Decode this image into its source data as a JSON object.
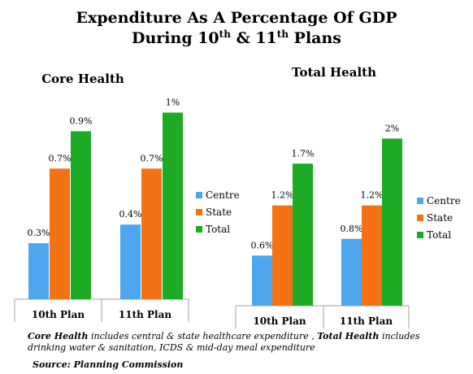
{
  "title": {
    "line1": "Expenditure As A Percentage Of GDP",
    "line2_pre": "During 10",
    "sup1": "th",
    "line2_mid": " & 11",
    "sup2": "th",
    "line2_post": " Plans"
  },
  "colors": {
    "Centre": "#4da6ee",
    "State": "#f47216",
    "Total": "#1daa25",
    "axis": "#a0a0a0",
    "text": "#000000"
  },
  "chart_data": [
    {
      "type": "bar",
      "title": "Core Health",
      "categories": [
        "10th Plan",
        "11th Plan"
      ],
      "series": [
        {
          "name": "Centre",
          "values": [
            0.3,
            0.4
          ],
          "labels": [
            "0.3%",
            "0.4%"
          ]
        },
        {
          "name": "State",
          "values": [
            0.7,
            0.7
          ],
          "labels": [
            "0.7%",
            "0.7%"
          ]
        },
        {
          "name": "Total",
          "values": [
            0.9,
            1.0
          ],
          "labels": [
            "0.9%",
            "1%"
          ]
        }
      ],
      "legend": "right",
      "grid": false,
      "ylim": [
        0,
        1.05
      ]
    },
    {
      "type": "bar",
      "title": "Total Health",
      "categories": [
        "10th Plan",
        "11th Plan"
      ],
      "series": [
        {
          "name": "Centre",
          "values": [
            0.6,
            0.8
          ],
          "labels": [
            "0.6%",
            "0.8%"
          ]
        },
        {
          "name": "State",
          "values": [
            1.2,
            1.2
          ],
          "labels": [
            "1.2%",
            "1.2%"
          ]
        },
        {
          "name": "Total",
          "values": [
            1.7,
            2.0
          ],
          "labels": [
            "1.7%",
            "2%"
          ]
        }
      ],
      "legend": "right",
      "grid": false,
      "ylim": [
        0,
        2.15
      ]
    }
  ],
  "footnote": {
    "core_term": "Core Health",
    "core_text": " includes central & state healthcare expenditure , ",
    "total_term": "Total Health",
    "total_text": " includes",
    "line2": "drinking water & sanitation, ICDS & mid-day meal expenditure"
  },
  "source": "Source: Planning Commission"
}
